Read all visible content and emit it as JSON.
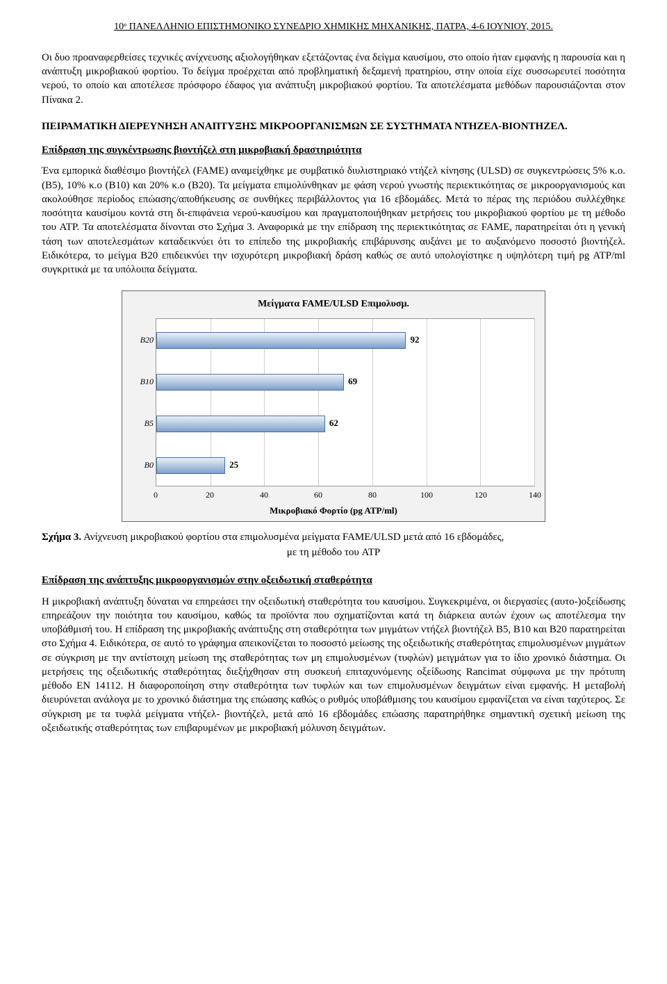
{
  "header": "10ᵒ ΠΑΝΕΛΛΗΝΙΟ ΕΠΙΣΤΗΜΟΝΙΚΟ ΣΥΝΕΔΡΙΟ ΧΗΜΙΚΗΣ ΜΗΧΑΝΙΚΗΣ, ΠΑΤΡΑ, 4-6 ΙΟΥΝΙΟΥ, 2015.",
  "para1": "Οι δυο προαναφερθείσες τεχνικές ανίχνευσης αξιολογήθηκαν εξετάζοντας ένα δείγμα καυσίμου, στο οποίο ήταν εμφανής η παρουσία και η ανάπτυξη μικροβιακού φορτίου. Το δείγμα προέρχεται από προβληματική δεξαμενή πρατηρίου, στην οποία είχε συσσωρευτεί ποσότητα νερού, το οποίο και αποτέλεσε πρόσφορο έδαφος για ανάπτυξη μικροβιακού φορτίου. Τα αποτελέσματα μεθόδων παρουσιάζονται στον Πίνακα 2.",
  "sectionTitle": "ΠΕΙΡΑΜΑΤΙΚΗ ΔΙΕΡΕΥΝΗΣΗ ΑΝΑΠΤΥΞΗΣ ΜΙΚΡΟΟΡΓΑΝΙΣΜΩΝ ΣΕ ΣΥΣΤΗΜΑΤΑ ΝΤΗΖΕΛ-ΒΙΟΝΤΗΖΕΛ.",
  "sub1": "Επίδραση της συγκέντρωσης βιοντήζελ στη μικροβιακή δραστηριότητα",
  "para2": "Ένα εμπορικά διαθέσιμο βιοντήζελ (FAME) αναμείχθηκε με συμβατικό διυλιστηριακό ντήζελ κίνησης (ULSD) σε συγκεντρώσεις 5% κ.ο.(B5), 10% κ.ο (B10) και 20% κ.ο (B20). Τα μείγματα επιμολύνθηκαν με φάση νερού γνωστής περιεκτικότητας σε μικροοργανισμούς και ακολούθησε περίοδος επώασης/αποθήκευσης σε συνθήκες περιβάλλοντος για 16 εβδομάδες. Μετά το πέρας της περιόδου συλλέχθηκε ποσότητα καυσίμου κοντά στη δι-επιφάνεια νερού-καυσίμου και πραγματοποιήθηκαν μετρήσεις του μικροβιακού φορτίου με τη μέθοδο του ATP. Τα αποτελέσματα δίνονται στο Σχήμα 3. Αναφορικά με την επίδραση της περιεκτικότητας σε FAME, παρατηρείται ότι η γενική τάση των αποτελεσμάτων καταδεικνύει ότι το επίπεδο της μικροβιακής επιβάρυνσης αυξάνει με το αυξανόμενο ποσοστό βιοντήζελ. Ειδικότερα, το μείγμα B20 επιδεικνύει την ισχυρότερη μικροβιακή δράση καθώς σε αυτό υπολογίστηκε η υψηλότερη τιμή pg ATP/ml συγκριτικά με τα υπόλοιπα δείγματα.",
  "chart": {
    "type": "bar-horizontal",
    "title": "Μείγματα FAME/ULSD Επιμολυσμ.",
    "categories": [
      "B20",
      "B10",
      "B5",
      "B0"
    ],
    "values": [
      92,
      69,
      62,
      25
    ],
    "xmin": 0,
    "xmax": 140,
    "xtick_step": 20,
    "xticks": [
      0,
      20,
      40,
      60,
      80,
      100,
      120,
      140
    ],
    "xlabel": "Μικροβιακό Φορτίο (pg ATP/ml)",
    "bar_gradient_top": "#eaf1f8",
    "bar_gradient_bottom": "#7ea0cc",
    "bar_border": "#4a6fa0",
    "plot_bg": "#ffffff",
    "panel_bg": "#f2f2f2",
    "grid_color": "#cfcfcf",
    "label_fontsize": 12,
    "title_fontsize": 14
  },
  "figLabel": "Σχήμα 3.",
  "figCaption": "Ανίχνευση μικροβιακού φορτίου στα επιμολυσμένα μείγματα FAME/ULSD μετά από 16 εβδομάδες,",
  "figCaption2": "με τη μέθοδο του ATP",
  "sub2": "Επίδραση της ανάπτυξης μικροοργανισμών στην οξειδωτική σταθερότητα",
  "para3": "Η μικροβιακή ανάπτυξη δύναται να επηρεάσει την οξειδωτική σταθερότητα του καυσίμου. Συγκεκριμένα, οι διεργασίες (αυτο-)οξείδωσης επηρεάζουν την ποιότητα του καυσίμου, καθώς τα προϊόντα που σχηματίζονται κατά τη διάρκεια αυτών έχουν ως αποτέλεσμα την υποβάθμισή του. Η επίδραση της μικροβιακής ανάπτυξης στη σταθερότητα των μιγμάτων ντήζελ βιοντήζελ B5, B10 και B20 παρατηρείται στο Σχήμα 4. Ειδικότερα, σε αυτό το γράφημα απεικονίζεται το ποσοστό μείωσης της οξειδωτικής σταθερότητας επιμολυσμένων μιγμάτων σε σύγκριση με την αντίστοιχη μείωση της σταθερότητας των μη επιμολυσμένων (τυφλών) μειγμάτων για το ίδιο χρονικό διάστημα. Οι μετρήσεις της οξειδωτικής σταθερότητας διεξήχθησαν στη συσκευή επιταχυνόμενης οξείδωσης Rancimat σύμφωνα με την πρότυπη μέθοδο EN 14112. Η διαφοροποίηση στην σταθερότητα των τυφλών και των επιμολυσμένων δειγμάτων είναι εμφανής. Η μεταβολή διευρύνεται ανάλογα με το χρονικό διάστημα της επώασης καθώς ο ρυθμός υποβάθμισης του καυσίμου εμφανίζεται να είναι ταχύτερος. Σε σύγκριση με τα τυφλά μείγματα ντήζελ- βιοντήζελ, μετά από 16 εβδομάδες επώασης παρατηρήθηκε σημαντική σχετική μείωση της οξειδωτικής σταθερότητας των επιβαρυμένων με μικροβιακή μόλυνση δειγμάτων."
}
